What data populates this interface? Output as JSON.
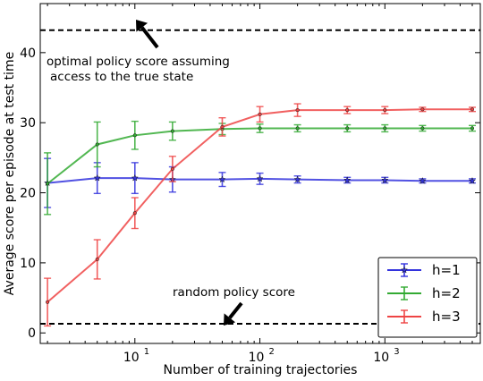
{
  "chart_data": {
    "type": "line",
    "xscale": "log",
    "xlabel": "Number of training trajectories",
    "ylabel": "Average score per episode at test time",
    "xlim": [
      1.75,
      5800
    ],
    "ylim": [
      -1.5,
      47
    ],
    "yticks": [
      0,
      10,
      20,
      30,
      40
    ],
    "xticks": [
      {
        "value": 10,
        "base": "10",
        "exp": "1"
      },
      {
        "value": 100,
        "base": "10",
        "exp": "2"
      },
      {
        "value": 1000,
        "base": "10",
        "exp": "3"
      }
    ],
    "grid": false,
    "legend_position": "lower-right",
    "reference_lines": [
      {
        "name": "optimal",
        "y": 43.2
      },
      {
        "name": "random",
        "y": 1.3
      }
    ],
    "annotations": [
      {
        "lines": [
          "optimal policy score assuming",
          "access to the true state"
        ],
        "target": {
          "x": 15,
          "y": 43.2
        }
      },
      {
        "lines": [
          "random policy score"
        ],
        "target": {
          "x": 55,
          "y": 1.3
        }
      }
    ],
    "series": [
      {
        "name": "h=1",
        "color": "#3333dd",
        "marker": "star",
        "x": [
          2,
          5,
          10,
          20,
          50,
          100,
          200,
          500,
          1000,
          2000,
          5000
        ],
        "y": [
          21.4,
          22.1,
          22.1,
          21.9,
          21.9,
          22.0,
          21.9,
          21.8,
          21.8,
          21.7,
          21.7
        ],
        "err": [
          3.5,
          2.2,
          2.2,
          1.8,
          1.0,
          0.8,
          0.5,
          0.4,
          0.4,
          0.3,
          0.3
        ]
      },
      {
        "name": "h=2",
        "color": "#33aa33",
        "marker": "plus",
        "x": [
          2,
          5,
          10,
          20,
          50,
          100,
          200,
          500,
          1000,
          2000,
          5000
        ],
        "y": [
          21.3,
          26.9,
          28.2,
          28.8,
          29.1,
          29.2,
          29.2,
          29.2,
          29.2,
          29.2,
          29.2
        ],
        "err": [
          4.4,
          3.2,
          2.0,
          1.3,
          0.8,
          0.6,
          0.5,
          0.5,
          0.5,
          0.4,
          0.4
        ]
      },
      {
        "name": "h=3",
        "color": "#ee4444",
        "marker": "plus",
        "x": [
          2,
          5,
          10,
          20,
          50,
          100,
          200,
          500,
          1000,
          2000,
          5000
        ],
        "y": [
          4.4,
          10.5,
          17.1,
          23.4,
          29.4,
          31.2,
          31.8,
          31.8,
          31.8,
          31.9,
          31.9
        ],
        "err": [
          3.4,
          2.8,
          2.2,
          1.8,
          1.3,
          1.1,
          0.9,
          0.5,
          0.5,
          0.3,
          0.3
        ]
      }
    ]
  }
}
